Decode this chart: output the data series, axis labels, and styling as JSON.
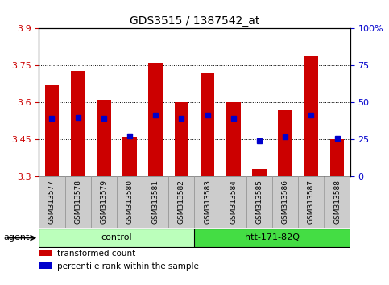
{
  "title": "GDS3515 / 1387542_at",
  "samples": [
    "GSM313577",
    "GSM313578",
    "GSM313579",
    "GSM313580",
    "GSM313581",
    "GSM313582",
    "GSM313583",
    "GSM313584",
    "GSM313585",
    "GSM313586",
    "GSM313587",
    "GSM313588"
  ],
  "bar_values": [
    3.67,
    3.73,
    3.61,
    3.46,
    3.76,
    3.6,
    3.72,
    3.6,
    3.33,
    3.57,
    3.79,
    3.45
  ],
  "percentile_values": [
    3.535,
    3.54,
    3.535,
    3.465,
    3.548,
    3.535,
    3.548,
    3.535,
    3.445,
    3.462,
    3.548,
    3.455
  ],
  "ylim_left": [
    3.3,
    3.9
  ],
  "ylim_right": [
    0,
    100
  ],
  "yticks_left": [
    3.3,
    3.45,
    3.6,
    3.75,
    3.9
  ],
  "yticks_right": [
    0,
    25,
    50,
    75,
    100
  ],
  "ytick_labels_left": [
    "3.3",
    "3.45",
    "3.6",
    "3.75",
    "3.9"
  ],
  "ytick_labels_right": [
    "0",
    "25",
    "50",
    "75",
    "100%"
  ],
  "bar_color": "#cc0000",
  "percentile_color": "#0000cc",
  "baseline": 3.3,
  "group_configs": [
    {
      "start": 0,
      "end": 5,
      "label": "control",
      "color": "#bbffbb"
    },
    {
      "start": 6,
      "end": 11,
      "label": "htt-171-82Q",
      "color": "#44dd44"
    }
  ],
  "group_label": "agent",
  "legend_items": [
    {
      "label": "transformed count",
      "color": "#cc0000"
    },
    {
      "label": "percentile rank within the sample",
      "color": "#0000cc"
    }
  ],
  "bar_width": 0.55,
  "background_color": "#ffffff",
  "tick_bg_color": "#cccccc",
  "tick_border_color": "#999999"
}
